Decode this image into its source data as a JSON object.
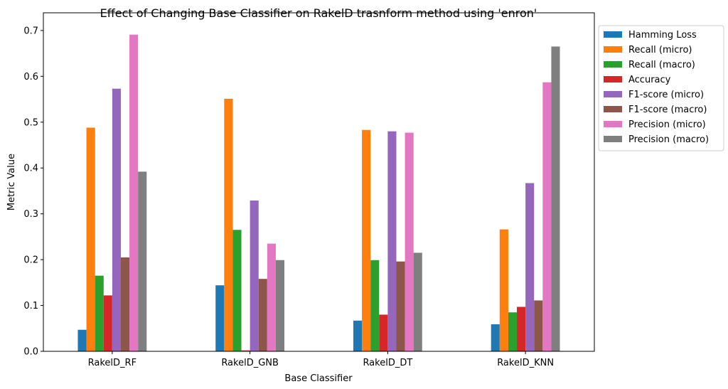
{
  "chart_data": {
    "type": "bar",
    "title": "Effect of Changing Base Classifier on RakelD trasnform method using 'enron'",
    "xlabel": "Base Classifier",
    "ylabel": "Metric Value",
    "ylim": [
      0,
      0.7
    ],
    "yticks": [
      "0.0",
      "0.1",
      "0.2",
      "0.3",
      "0.4",
      "0.5",
      "0.6",
      "0.7"
    ],
    "yticks_values": [
      0,
      0.1,
      0.2,
      0.3,
      0.4,
      0.5,
      0.6,
      0.7
    ],
    "categories": [
      "RakelD_RF",
      "RakelD_GNB",
      "RakelD_DT",
      "RakelD_KNN"
    ],
    "legend_position": "outside-top-right",
    "grid": false,
    "series": [
      {
        "name": "Hamming Loss",
        "color": "#1f77b4",
        "values": [
          0.047,
          0.144,
          0.067,
          0.059
        ]
      },
      {
        "name": "Recall (micro)",
        "color": "#ff7f0e",
        "values": [
          0.488,
          0.551,
          0.483,
          0.266
        ]
      },
      {
        "name": "Recall (macro)",
        "color": "#2ca02c",
        "values": [
          0.165,
          0.265,
          0.199,
          0.085
        ]
      },
      {
        "name": "Accuracy",
        "color": "#d62728",
        "values": [
          0.122,
          0.002,
          0.08,
          0.097
        ]
      },
      {
        "name": "F1-score (micro)",
        "color": "#9467bd",
        "values": [
          0.573,
          0.329,
          0.48,
          0.367
        ]
      },
      {
        "name": "F1-score (macro)",
        "color": "#8c564b",
        "values": [
          0.205,
          0.158,
          0.196,
          0.111
        ]
      },
      {
        "name": "Precision (micro)",
        "color": "#e377c2",
        "values": [
          0.691,
          0.235,
          0.477,
          0.587
        ]
      },
      {
        "name": "Precision (macro)",
        "color": "#7f7f7f",
        "values": [
          0.392,
          0.199,
          0.215,
          0.665
        ]
      }
    ]
  }
}
